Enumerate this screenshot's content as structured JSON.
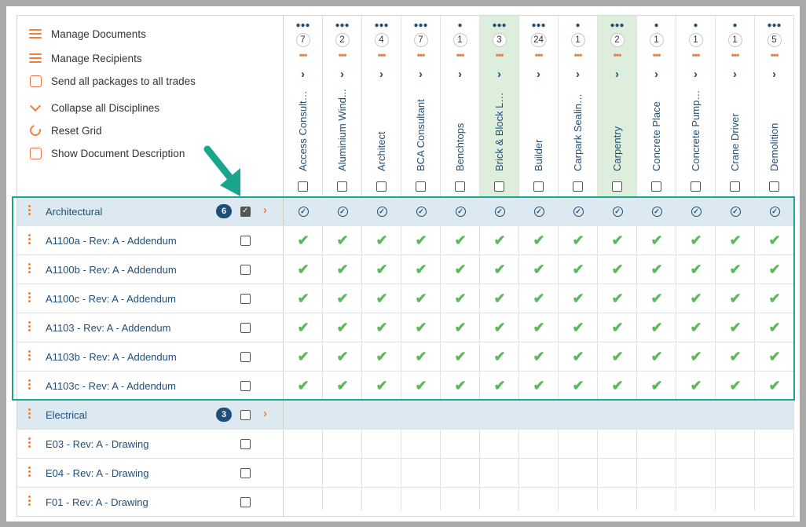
{
  "menu": {
    "manage_documents": "Manage Documents",
    "manage_recipients": "Manage Recipients",
    "send_all": "Send all packages to all trades",
    "collapse_all": "Collapse all Disciplines",
    "reset_grid": "Reset Grid",
    "show_description": "Show Document Description"
  },
  "trades": [
    {
      "name": "Access Consultant",
      "count": "7",
      "icon": "group-icon",
      "highlight": false
    },
    {
      "name": "Aluminium Wind...",
      "count": "2",
      "icon": "group-icon",
      "highlight": false
    },
    {
      "name": "Architect",
      "count": "4",
      "icon": "group-icon",
      "highlight": false
    },
    {
      "name": "BCA Consultant",
      "count": "7",
      "icon": "group-icon",
      "highlight": false
    },
    {
      "name": "Benchtops",
      "count": "1",
      "icon": "person-icon",
      "highlight": false
    },
    {
      "name": "Brick & Block Layi...",
      "count": "3",
      "icon": "group-icon",
      "highlight": true
    },
    {
      "name": "Builder",
      "count": "24",
      "icon": "group-icon",
      "highlight": false
    },
    {
      "name": "Carpark Sealing ...",
      "count": "1",
      "icon": "person-icon",
      "highlight": false
    },
    {
      "name": "Carpentry",
      "count": "2",
      "icon": "group-icon",
      "highlight": true
    },
    {
      "name": "Concrete Place",
      "count": "1",
      "icon": "person-icon",
      "highlight": false
    },
    {
      "name": "Concrete Pumpin...",
      "count": "1",
      "icon": "person-icon",
      "highlight": false
    },
    {
      "name": "Crane Driver",
      "count": "1",
      "icon": "person-icon",
      "highlight": false
    },
    {
      "name": "Demolition",
      "count": "5",
      "icon": "group-icon",
      "highlight": false
    }
  ],
  "rows": [
    {
      "type": "group",
      "name": "Architectural",
      "badge": "6",
      "checked": true,
      "cells": "circle"
    },
    {
      "type": "doc",
      "name": "A1100a - Rev: A - Addendum",
      "checked": false,
      "cells": "tick"
    },
    {
      "type": "doc",
      "name": "A1100b - Rev: A - Addendum",
      "checked": false,
      "cells": "tick"
    },
    {
      "type": "doc",
      "name": "A1100c - Rev: A - Addendum",
      "checked": false,
      "cells": "tick"
    },
    {
      "type": "doc",
      "name": "A1103 - Rev: A - Addendum",
      "checked": false,
      "cells": "tick"
    },
    {
      "type": "doc",
      "name": "A1103b - Rev: A - Addendum",
      "checked": false,
      "cells": "tick"
    },
    {
      "type": "doc",
      "name": "A1103c - Rev: A - Addendum",
      "checked": false,
      "cells": "tick"
    },
    {
      "type": "group",
      "name": "Electrical",
      "badge": "3",
      "checked": false,
      "cells": "none"
    },
    {
      "type": "doc",
      "name": "E03 - Rev: A - Drawing",
      "checked": false,
      "cells": "none"
    },
    {
      "type": "doc",
      "name": "E04 - Rev: A - Drawing",
      "checked": false,
      "cells": "none"
    },
    {
      "type": "doc",
      "name": "F01 - Rev: A - Drawing",
      "checked": false,
      "cells": "none"
    }
  ],
  "colors": {
    "accent": "#f07f3c",
    "navy": "#1f4e79",
    "tick": "#5cb85c",
    "highlight": "#deeedd",
    "group_bg": "#dde9f0",
    "callout": "#1aa58c"
  }
}
